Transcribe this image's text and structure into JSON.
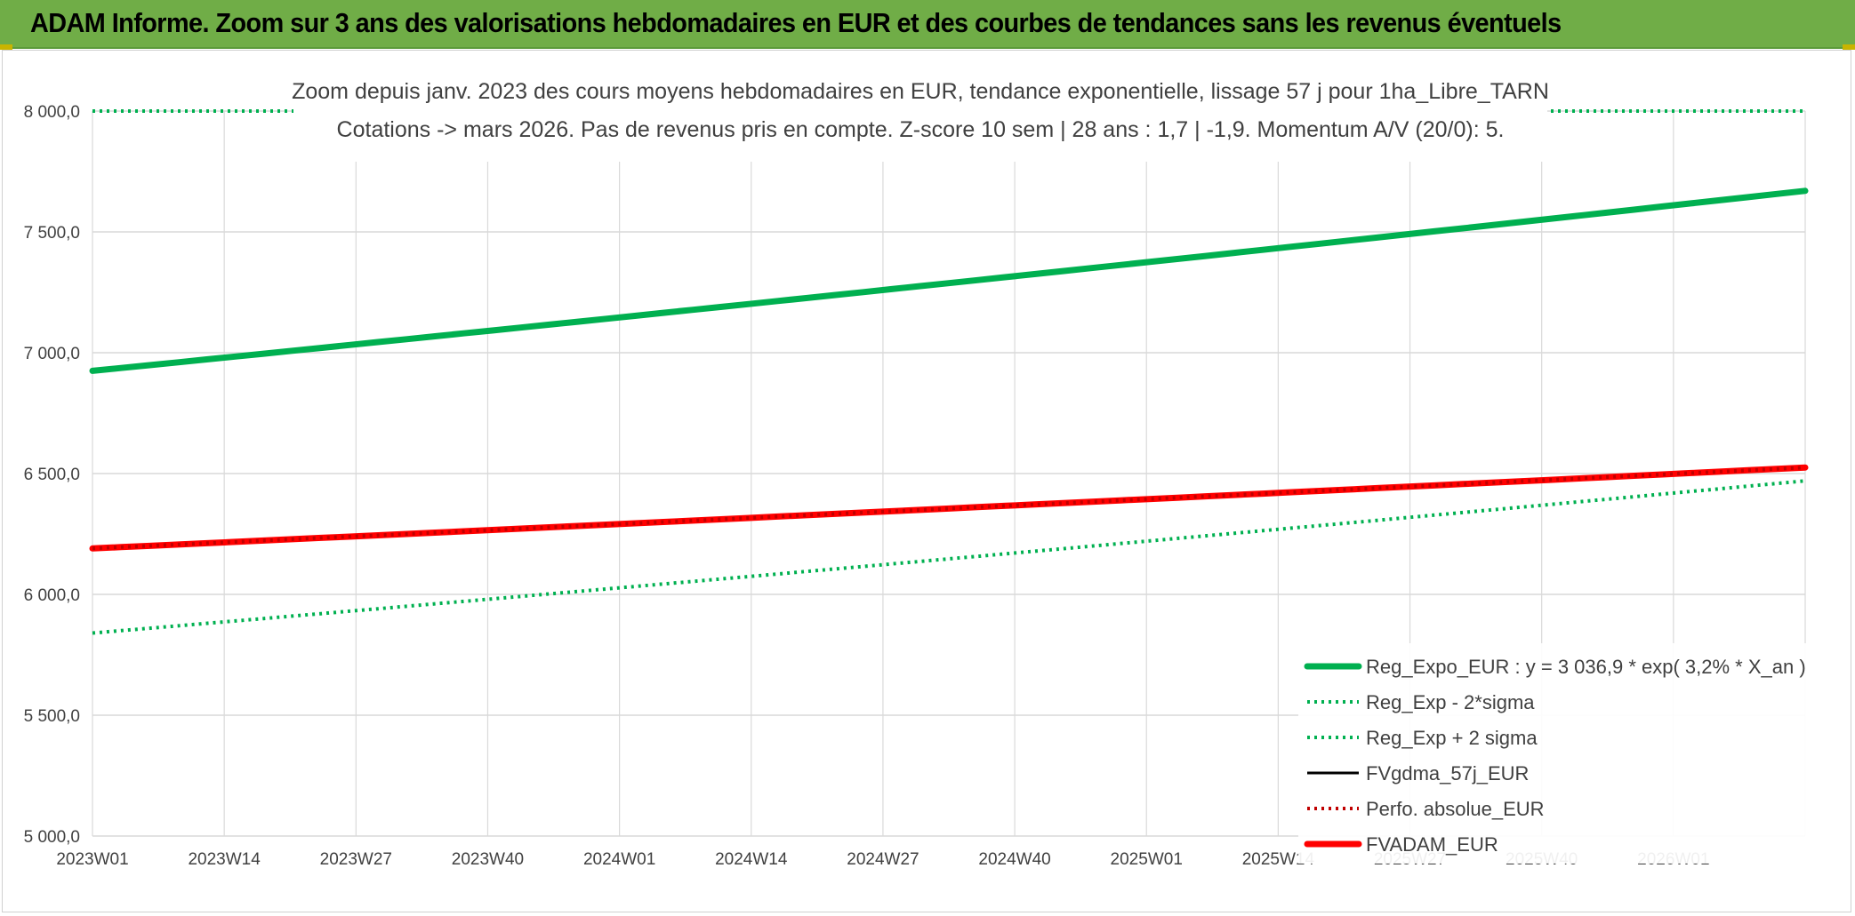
{
  "banner": {
    "title": "ADAM Informe. Zoom sur 3 ans des valorisations hebdomadaires en EUR et des courbes de tendances sans les revenus éventuels"
  },
  "colors": {
    "banner": "#70ad47",
    "reg_expo": "#00b050",
    "sigma": "#00b050",
    "fvgdma": "#000000",
    "perfo": "#c00000",
    "fvadam": "#ff0000",
    "grid": "#d9d9d9",
    "text": "#404040"
  },
  "chart_data": {
    "type": "line",
    "title": "Zoom depuis janv. 2023 des cours moyens hebdomadaires en EUR, tendance exponentielle, lissage 57 j pour 1ha_Libre_TARN",
    "subtitle": "Cotations -> mars 2026. Pas de revenus pris en compte. Z-score 10 sem | 28 ans : 1,7 | -1,9. Momentum A/V (20/0): 5.",
    "ylim": [
      5000,
      8000
    ],
    "yticks": [
      5000,
      5500,
      6000,
      6500,
      7000,
      7500,
      8000
    ],
    "ytick_labels": [
      "5 000,0",
      "5 500,0",
      "6 000,0",
      "6 500,0",
      "7 000,0",
      "7 500,0",
      "8 000,0"
    ],
    "x_start_week": 1,
    "x_end_week": 170,
    "xtick_weeks": [
      1,
      14,
      27,
      40,
      53,
      66,
      79,
      92,
      105,
      118,
      131,
      144,
      157
    ],
    "xtick_labels": [
      "2023W01",
      "2023W14",
      "2023W27",
      "2023W40",
      "2024W01",
      "2024W14",
      "2024W27",
      "2024W40",
      "2025W01",
      "2025W14",
      "2025W27",
      "2025W40",
      "2026W01"
    ],
    "grid": true,
    "legend_position": "bottom-right",
    "series": [
      {
        "name": "Reg_Expo_EUR : y = 3 036,9 * exp( 3,2% *  X_an )",
        "style": "solid-thick",
        "color_key": "reg_expo",
        "start": 6925,
        "end": 7670
      },
      {
        "name": "Reg_Exp - 2*sigma",
        "style": "dotted",
        "color_key": "sigma",
        "start": 5840,
        "end": 6470
      },
      {
        "name": "Reg_Exp + 2 sigma",
        "style": "dotted",
        "color_key": "sigma",
        "start": 8000,
        "end": 8000
      },
      {
        "name": "FVgdma_57j_EUR",
        "style": "solid",
        "color_key": "fvgdma",
        "start": 6190,
        "end": 6520
      },
      {
        "name": "Perfo. absolue_EUR",
        "style": "dotted",
        "color_key": "perfo",
        "start": 6190,
        "end": 6525
      },
      {
        "name": "FVADAM_EUR",
        "style": "solid-thick",
        "color_key": "fvadam",
        "start": 6190,
        "end": 6525
      }
    ]
  }
}
